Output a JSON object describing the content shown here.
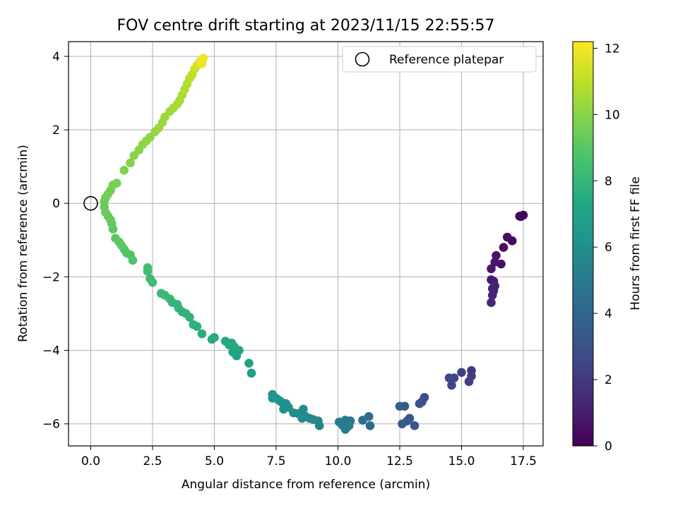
{
  "chart_data": {
    "type": "scatter",
    "title": "FOV centre drift starting at 2023/11/15 22:55:57",
    "xlabel": "Angular distance from reference (arcmin)",
    "ylabel": "Rotation from reference (arcmin)",
    "xlim": [
      -0.9,
      18.3
    ],
    "ylim": [
      -6.6,
      4.4
    ],
    "xticks": [
      0.0,
      2.5,
      5.0,
      7.5,
      10.0,
      12.5,
      15.0,
      17.5
    ],
    "xtick_labels": [
      "0.0",
      "2.5",
      "5.0",
      "7.5",
      "10.0",
      "12.5",
      "15.0",
      "17.5"
    ],
    "yticks": [
      -6,
      -4,
      -2,
      0,
      2,
      4
    ],
    "ytick_labels": [
      "−6",
      "−4",
      "−2",
      "0",
      "2",
      "4"
    ],
    "grid": true,
    "legend": {
      "placement": "top-right",
      "entries": [
        "Reference platepar"
      ]
    },
    "colormap": "viridis",
    "colorbar": {
      "label": "Hours from first FF file",
      "range": [
        0,
        12.2
      ],
      "ticks": [
        0,
        2,
        4,
        6,
        8,
        10,
        12
      ],
      "tick_labels": [
        "0",
        "2",
        "4",
        "6",
        "8",
        "10",
        "12"
      ]
    },
    "reference_point": {
      "x": 0.0,
      "y": 0.0,
      "label": "Reference platepar"
    },
    "series": [
      {
        "points": [
          [
            17.5,
            -0.32,
            0.0
          ],
          [
            17.4,
            -0.36,
            0.1
          ],
          [
            17.35,
            -0.35,
            0.15
          ],
          [
            17.05,
            -1.02,
            0.3
          ],
          [
            16.85,
            -0.92,
            0.4
          ],
          [
            16.7,
            -1.2,
            0.5
          ],
          [
            16.6,
            -1.65,
            0.6
          ],
          [
            16.4,
            -1.42,
            0.7
          ],
          [
            16.35,
            -1.6,
            0.75
          ],
          [
            16.2,
            -1.78,
            0.8
          ],
          [
            16.3,
            -2.12,
            0.9
          ],
          [
            16.2,
            -2.08,
            1.0
          ],
          [
            16.35,
            -2.25,
            1.1
          ],
          [
            16.3,
            -2.38,
            1.15
          ],
          [
            16.25,
            -2.32,
            1.2
          ],
          [
            16.2,
            -2.7,
            1.3
          ],
          [
            16.25,
            -2.5,
            1.35
          ],
          [
            15.4,
            -4.55,
            2.0
          ],
          [
            15.4,
            -4.7,
            2.1
          ],
          [
            15.3,
            -4.85,
            2.2
          ],
          [
            15.0,
            -4.6,
            2.3
          ],
          [
            14.7,
            -4.75,
            2.4
          ],
          [
            14.6,
            -4.95,
            2.5
          ],
          [
            14.5,
            -4.75,
            2.6
          ],
          [
            13.5,
            -5.28,
            2.9
          ],
          [
            13.4,
            -5.4,
            3.0
          ],
          [
            13.3,
            -5.45,
            3.05
          ],
          [
            13.1,
            -6.05,
            3.2
          ],
          [
            12.9,
            -5.85,
            3.3
          ],
          [
            12.8,
            -5.92,
            3.4
          ],
          [
            12.7,
            -5.52,
            3.45
          ],
          [
            12.6,
            -6.0,
            3.55
          ],
          [
            12.5,
            -5.52,
            3.6
          ],
          [
            11.3,
            -6.05,
            4.2
          ],
          [
            11.25,
            -5.8,
            4.3
          ],
          [
            11.0,
            -5.9,
            4.4
          ],
          [
            10.5,
            -5.92,
            4.6
          ],
          [
            10.4,
            -6.0,
            4.7
          ],
          [
            10.3,
            -5.9,
            4.75
          ],
          [
            10.35,
            -6.1,
            4.8
          ],
          [
            10.2,
            -6.05,
            4.85
          ],
          [
            10.2,
            -5.95,
            4.9
          ],
          [
            10.05,
            -5.95,
            5.0
          ],
          [
            10.3,
            -6.15,
            5.05
          ],
          [
            10.45,
            -6.05,
            5.1
          ],
          [
            9.25,
            -6.05,
            5.5
          ],
          [
            9.2,
            -5.92,
            5.55
          ],
          [
            9.0,
            -5.88,
            5.6
          ],
          [
            8.85,
            -5.85,
            5.7
          ],
          [
            8.7,
            -5.8,
            5.75
          ],
          [
            8.6,
            -5.6,
            5.8
          ],
          [
            8.55,
            -5.85,
            5.85
          ],
          [
            8.4,
            -5.72,
            5.9
          ],
          [
            8.2,
            -5.7,
            5.95
          ],
          [
            8.0,
            -5.55,
            6.0
          ],
          [
            7.8,
            -5.6,
            6.05
          ],
          [
            7.9,
            -5.45,
            6.1
          ],
          [
            7.7,
            -5.4,
            6.15
          ],
          [
            7.6,
            -5.35,
            6.2
          ],
          [
            7.5,
            -5.3,
            6.25
          ],
          [
            7.35,
            -5.2,
            6.3
          ],
          [
            7.35,
            -5.3,
            6.35
          ],
          [
            6.5,
            -4.62,
            6.9
          ],
          [
            6.4,
            -4.35,
            6.95
          ],
          [
            6.0,
            -4.0,
            7.05
          ],
          [
            5.9,
            -4.15,
            7.1
          ],
          [
            5.75,
            -4.05,
            7.15
          ],
          [
            5.7,
            -3.8,
            7.2
          ],
          [
            5.8,
            -3.9,
            7.25
          ],
          [
            5.6,
            -3.85,
            7.3
          ],
          [
            5.45,
            -3.75,
            7.35
          ],
          [
            5.0,
            -3.65,
            7.45
          ],
          [
            4.9,
            -3.7,
            7.5
          ],
          [
            4.5,
            -3.55,
            7.6
          ],
          [
            4.3,
            -3.35,
            7.7
          ],
          [
            4.15,
            -3.3,
            7.75
          ],
          [
            4.0,
            -3.1,
            7.8
          ],
          [
            3.85,
            -3.0,
            7.85
          ],
          [
            3.7,
            -2.95,
            7.9
          ],
          [
            3.55,
            -2.85,
            7.95
          ],
          [
            3.5,
            -2.75,
            8.0
          ],
          [
            3.3,
            -2.7,
            8.05
          ],
          [
            3.2,
            -2.6,
            8.1
          ],
          [
            3.0,
            -2.5,
            8.15
          ],
          [
            2.85,
            -2.45,
            8.2
          ],
          [
            2.5,
            -2.15,
            8.3
          ],
          [
            2.4,
            -2.05,
            8.35
          ],
          [
            2.3,
            -1.85,
            8.4
          ],
          [
            2.3,
            -1.75,
            8.45
          ],
          [
            1.7,
            -1.55,
            8.8
          ],
          [
            1.6,
            -1.4,
            8.85
          ],
          [
            1.45,
            -1.35,
            8.9
          ],
          [
            1.35,
            -1.25,
            8.95
          ],
          [
            1.25,
            -1.15,
            9.0
          ],
          [
            1.15,
            -1.05,
            9.05
          ],
          [
            1.0,
            -0.95,
            9.1
          ],
          [
            0.9,
            -0.7,
            9.15
          ],
          [
            0.85,
            -0.55,
            9.2
          ],
          [
            0.8,
            -0.45,
            9.25
          ],
          [
            0.7,
            -0.35,
            9.3
          ],
          [
            0.6,
            -0.25,
            9.35
          ],
          [
            0.55,
            -0.1,
            9.4
          ],
          [
            0.55,
            0.05,
            9.45
          ],
          [
            0.6,
            0.15,
            9.5
          ],
          [
            0.7,
            0.25,
            9.55
          ],
          [
            0.8,
            0.35,
            9.6
          ],
          [
            0.9,
            0.5,
            9.65
          ],
          [
            1.05,
            0.55,
            9.7
          ],
          [
            1.35,
            0.9,
            9.8
          ],
          [
            1.6,
            1.1,
            9.9
          ],
          [
            1.75,
            1.3,
            9.95
          ],
          [
            1.95,
            1.45,
            10.0
          ],
          [
            2.1,
            1.6,
            10.05
          ],
          [
            2.25,
            1.7,
            10.1
          ],
          [
            2.4,
            1.8,
            10.15
          ],
          [
            2.6,
            1.95,
            10.25
          ],
          [
            2.75,
            2.05,
            10.3
          ],
          [
            2.9,
            2.2,
            10.35
          ],
          [
            3.0,
            2.35,
            10.4
          ],
          [
            3.2,
            2.5,
            10.45
          ],
          [
            3.35,
            2.6,
            10.5
          ],
          [
            3.5,
            2.7,
            10.55
          ],
          [
            3.6,
            2.8,
            10.6
          ],
          [
            3.7,
            2.95,
            10.65
          ],
          [
            3.8,
            3.1,
            10.7
          ],
          [
            3.9,
            3.25,
            10.8
          ],
          [
            4.0,
            3.4,
            10.9
          ],
          [
            4.1,
            3.5,
            11.0
          ],
          [
            4.2,
            3.65,
            11.2
          ],
          [
            4.3,
            3.75,
            11.4
          ],
          [
            4.4,
            3.85,
            11.6
          ],
          [
            4.5,
            3.9,
            11.8
          ],
          [
            4.55,
            3.95,
            12.0
          ],
          [
            4.5,
            3.8,
            11.9
          ]
        ]
      }
    ]
  }
}
